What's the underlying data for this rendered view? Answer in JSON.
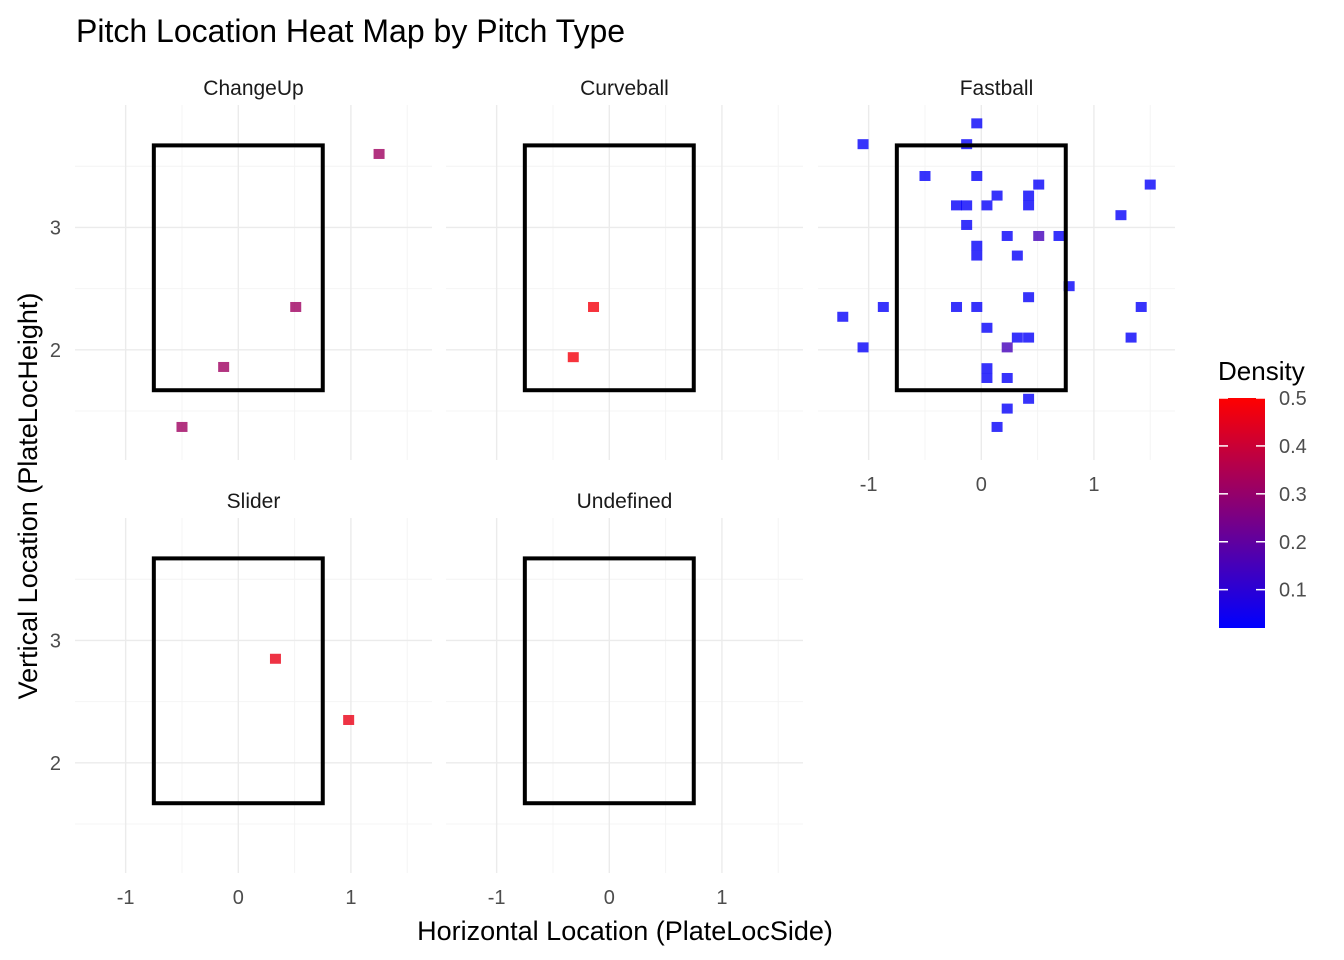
{
  "chart_data": {
    "type": "heatmap",
    "title": "Pitch Location Heat Map by Pitch Type",
    "xlabel": "Horizontal Location (PlateLocSide)",
    "ylabel": "Vertical Location (PlateLocHeight)",
    "xlim": [
      -1.45,
      1.72
    ],
    "ylim": [
      1.1,
      4.0
    ],
    "x_ticks": [
      -1,
      0,
      1
    ],
    "y_ticks": [
      2,
      3
    ],
    "strike_zone": {
      "x": [
        -0.75,
        0.75
      ],
      "y": [
        1.67,
        3.67
      ]
    },
    "legend": {
      "title": "Density",
      "ticks": [
        0.1,
        0.2,
        0.3,
        0.4,
        0.5
      ],
      "range": [
        0.02,
        0.5
      ],
      "low_color": "#0000ff",
      "high_color": "#ff0000"
    },
    "panels": [
      {
        "name": "ChangeUp",
        "points": [
          {
            "x": 1.25,
            "y": 3.6,
            "d": 0.32
          },
          {
            "x": 0.51,
            "y": 2.35,
            "d": 0.32
          },
          {
            "x": -0.13,
            "y": 1.86,
            "d": 0.32
          },
          {
            "x": -0.5,
            "y": 1.37,
            "d": 0.32
          }
        ]
      },
      {
        "name": "Curveball",
        "points": [
          {
            "x": -0.14,
            "y": 2.35,
            "d": 0.48
          },
          {
            "x": -0.32,
            "y": 1.94,
            "d": 0.48
          }
        ]
      },
      {
        "name": "Fastball",
        "points": [
          {
            "x": -0.04,
            "y": 3.85,
            "d": 0.03
          },
          {
            "x": -1.05,
            "y": 3.68,
            "d": 0.03
          },
          {
            "x": -0.13,
            "y": 3.68,
            "d": 0.03
          },
          {
            "x": -0.5,
            "y": 3.42,
            "d": 0.03
          },
          {
            "x": -0.04,
            "y": 3.42,
            "d": 0.03
          },
          {
            "x": 0.51,
            "y": 3.35,
            "d": 0.03
          },
          {
            "x": 1.5,
            "y": 3.35,
            "d": 0.03
          },
          {
            "x": 0.14,
            "y": 3.26,
            "d": 0.03
          },
          {
            "x": 0.42,
            "y": 3.26,
            "d": 0.03
          },
          {
            "x": -0.22,
            "y": 3.18,
            "d": 0.03
          },
          {
            "x": -0.13,
            "y": 3.18,
            "d": 0.03
          },
          {
            "x": 0.05,
            "y": 3.18,
            "d": 0.03
          },
          {
            "x": 0.42,
            "y": 3.18,
            "d": 0.03
          },
          {
            "x": 1.24,
            "y": 3.1,
            "d": 0.03
          },
          {
            "x": -0.13,
            "y": 3.02,
            "d": 0.03
          },
          {
            "x": 0.23,
            "y": 2.93,
            "d": 0.03
          },
          {
            "x": 0.51,
            "y": 2.93,
            "d": 0.15
          },
          {
            "x": 0.69,
            "y": 2.93,
            "d": 0.03
          },
          {
            "x": -0.04,
            "y": 2.85,
            "d": 0.03
          },
          {
            "x": -0.04,
            "y": 2.77,
            "d": 0.03
          },
          {
            "x": 0.32,
            "y": 2.77,
            "d": 0.03
          },
          {
            "x": 0.78,
            "y": 2.52,
            "d": 0.03
          },
          {
            "x": 0.42,
            "y": 2.43,
            "d": 0.03
          },
          {
            "x": -0.87,
            "y": 2.35,
            "d": 0.03
          },
          {
            "x": -0.22,
            "y": 2.35,
            "d": 0.03
          },
          {
            "x": -0.04,
            "y": 2.35,
            "d": 0.03
          },
          {
            "x": 1.42,
            "y": 2.35,
            "d": 0.03
          },
          {
            "x": -1.23,
            "y": 2.27,
            "d": 0.03
          },
          {
            "x": 0.05,
            "y": 2.18,
            "d": 0.03
          },
          {
            "x": 0.32,
            "y": 2.1,
            "d": 0.03
          },
          {
            "x": 0.42,
            "y": 2.1,
            "d": 0.03
          },
          {
            "x": 1.33,
            "y": 2.1,
            "d": 0.03
          },
          {
            "x": -1.05,
            "y": 2.02,
            "d": 0.03
          },
          {
            "x": 0.23,
            "y": 2.02,
            "d": 0.15
          },
          {
            "x": 0.05,
            "y": 1.85,
            "d": 0.03
          },
          {
            "x": 0.05,
            "y": 1.77,
            "d": 0.03
          },
          {
            "x": 0.23,
            "y": 1.77,
            "d": 0.03
          },
          {
            "x": 0.42,
            "y": 1.6,
            "d": 0.03
          },
          {
            "x": 0.23,
            "y": 1.52,
            "d": 0.03
          },
          {
            "x": 0.14,
            "y": 1.37,
            "d": 0.03
          }
        ]
      },
      {
        "name": "Slider",
        "points": [
          {
            "x": 0.33,
            "y": 2.85,
            "d": 0.46
          },
          {
            "x": 0.98,
            "y": 2.35,
            "d": 0.46
          }
        ]
      },
      {
        "name": "Undefined",
        "points": []
      }
    ]
  }
}
